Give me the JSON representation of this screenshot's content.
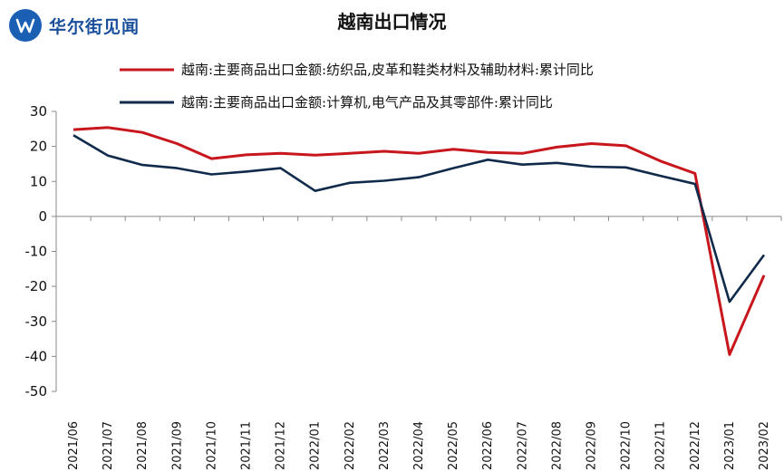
{
  "brand": {
    "logo_text": "华尔街见闻",
    "logo_icon": "brand-w-icon"
  },
  "chart_data": {
    "type": "line",
    "title": "越南出口情况",
    "xlabel": "",
    "ylabel": "",
    "ylim": [
      -50,
      30
    ],
    "yticks": [
      30,
      20,
      10,
      0,
      -10,
      -20,
      -30,
      -40,
      -50
    ],
    "categories": [
      "2021/06",
      "2021/07",
      "2021/08",
      "2021/09",
      "2021/10",
      "2021/11",
      "2021/12",
      "2022/01",
      "2022/02",
      "2022/03",
      "2022/04",
      "2022/05",
      "2022/06",
      "2022/07",
      "2022/08",
      "2022/09",
      "2022/10",
      "2022/11",
      "2022/12",
      "2023/01",
      "2023/02"
    ],
    "grid": false,
    "legend_position": "top",
    "series": [
      {
        "name": "越南:主要商品出口金额:纺织品,皮革和鞋类材料及辅助材料:累计同比",
        "color": "#c8161d",
        "values": [
          24.8,
          25.4,
          24.0,
          20.8,
          16.5,
          17.6,
          18.0,
          17.5,
          18.0,
          18.6,
          18.0,
          19.2,
          18.3,
          18.0,
          19.8,
          20.8,
          20.2,
          15.8,
          12.3,
          -39.5,
          -16.8
        ]
      },
      {
        "name": "越南:主要商品出口金额:计算机,电气产品及其零部件:累计同比",
        "color": "#0f2a4a",
        "values": [
          23.2,
          17.4,
          14.7,
          13.8,
          12.0,
          12.8,
          13.8,
          7.3,
          9.6,
          10.2,
          11.2,
          13.8,
          16.2,
          14.8,
          15.3,
          14.2,
          14.0,
          11.6,
          9.3,
          -24.4,
          -11.0
        ]
      }
    ]
  }
}
